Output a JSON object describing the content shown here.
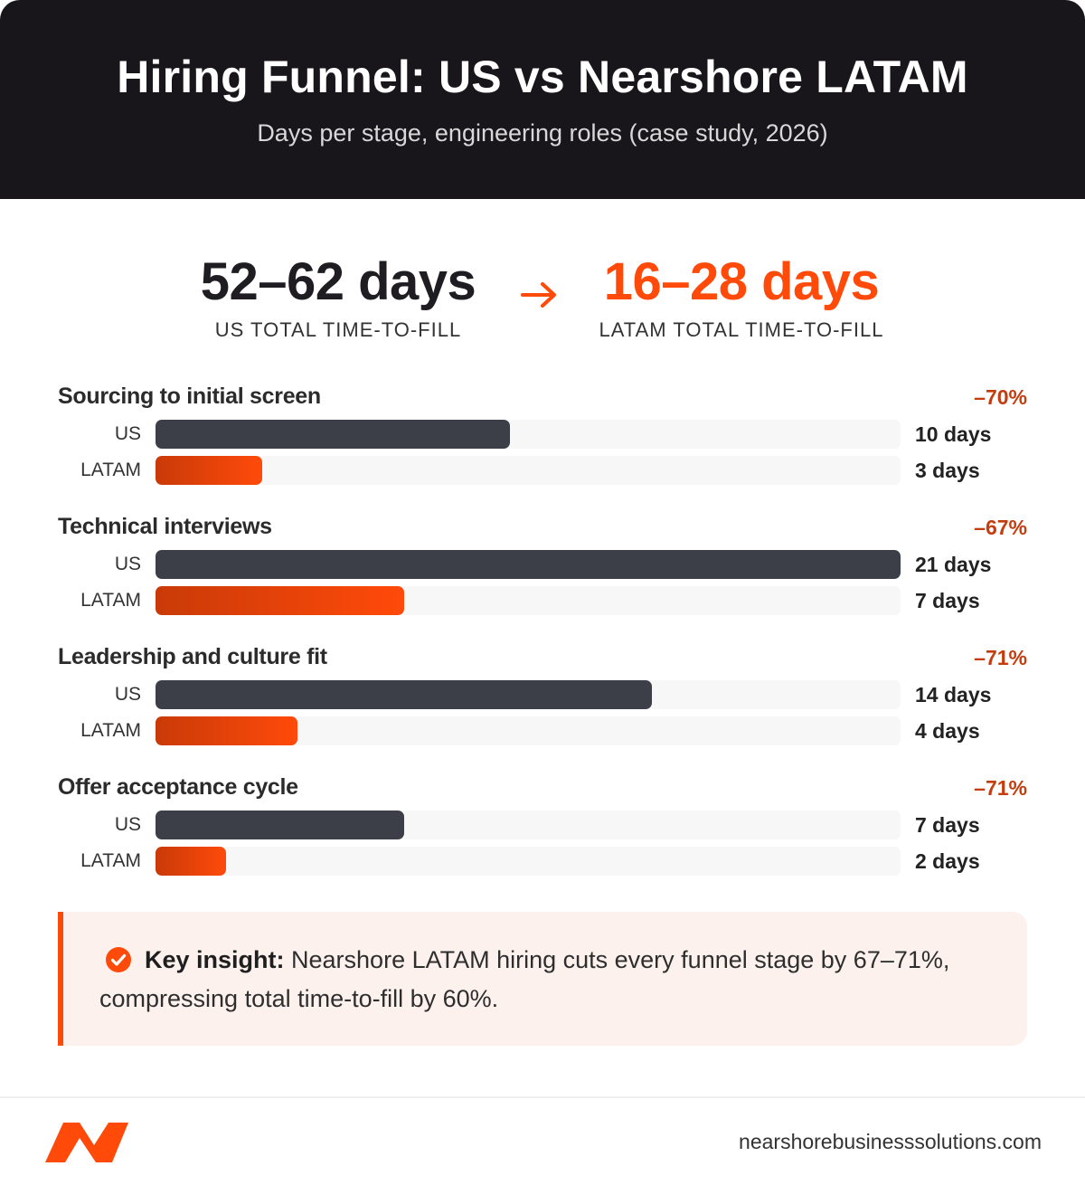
{
  "header": {
    "title": "Hiring Funnel: US vs Nearshore LATAM",
    "subtitle": "Days per stage, engineering roles (case study, 2026)"
  },
  "summary": {
    "us_value": "52–62 days",
    "us_label": "US TOTAL TIME-TO-FILL",
    "latam_value": "16–28 days",
    "latam_label": "LATAM TOTAL TIME-TO-FILL",
    "arrow_icon": "arrow-right-icon"
  },
  "chart_data": {
    "type": "bar",
    "orientation": "horizontal",
    "xlim": [
      0,
      21
    ],
    "unit": "days",
    "row_labels": [
      "US",
      "LATAM"
    ],
    "stages": [
      {
        "name": "Sourcing to initial screen",
        "change": "–70%",
        "us": 10,
        "latam": 3,
        "us_label": "10 days",
        "latam_label": "3 days"
      },
      {
        "name": "Technical interviews",
        "change": "–67%",
        "us": 21,
        "latam": 7,
        "us_label": "21 days",
        "latam_label": "7 days"
      },
      {
        "name": "Leadership and culture fit",
        "change": "–71%",
        "us": 14,
        "latam": 4,
        "us_label": "14 days",
        "latam_label": "4 days"
      },
      {
        "name": "Offer acceptance cycle",
        "change": "–71%",
        "us": 7,
        "latam": 2,
        "us_label": "7 days",
        "latam_label": "2 days"
      }
    ],
    "colors": {
      "us": "#3d3f48",
      "latam": "#ff4a0a",
      "latam_dark": "#c93a08",
      "change": "#c43d0e"
    }
  },
  "insight": {
    "icon": "check-circle-icon",
    "lead": "Key insight:",
    "text": " Nearshore LATAM hiring cuts every funnel stage by 67–71%, compressing total time-to-fill by 60%."
  },
  "footer": {
    "logo_icon": "brand-logo-icon",
    "domain": "nearshorebusinesssolutions.com"
  },
  "colors": {
    "header_bg": "#18161a",
    "accent": "#ff4a0a",
    "insight_bg": "#fdf1ee"
  }
}
